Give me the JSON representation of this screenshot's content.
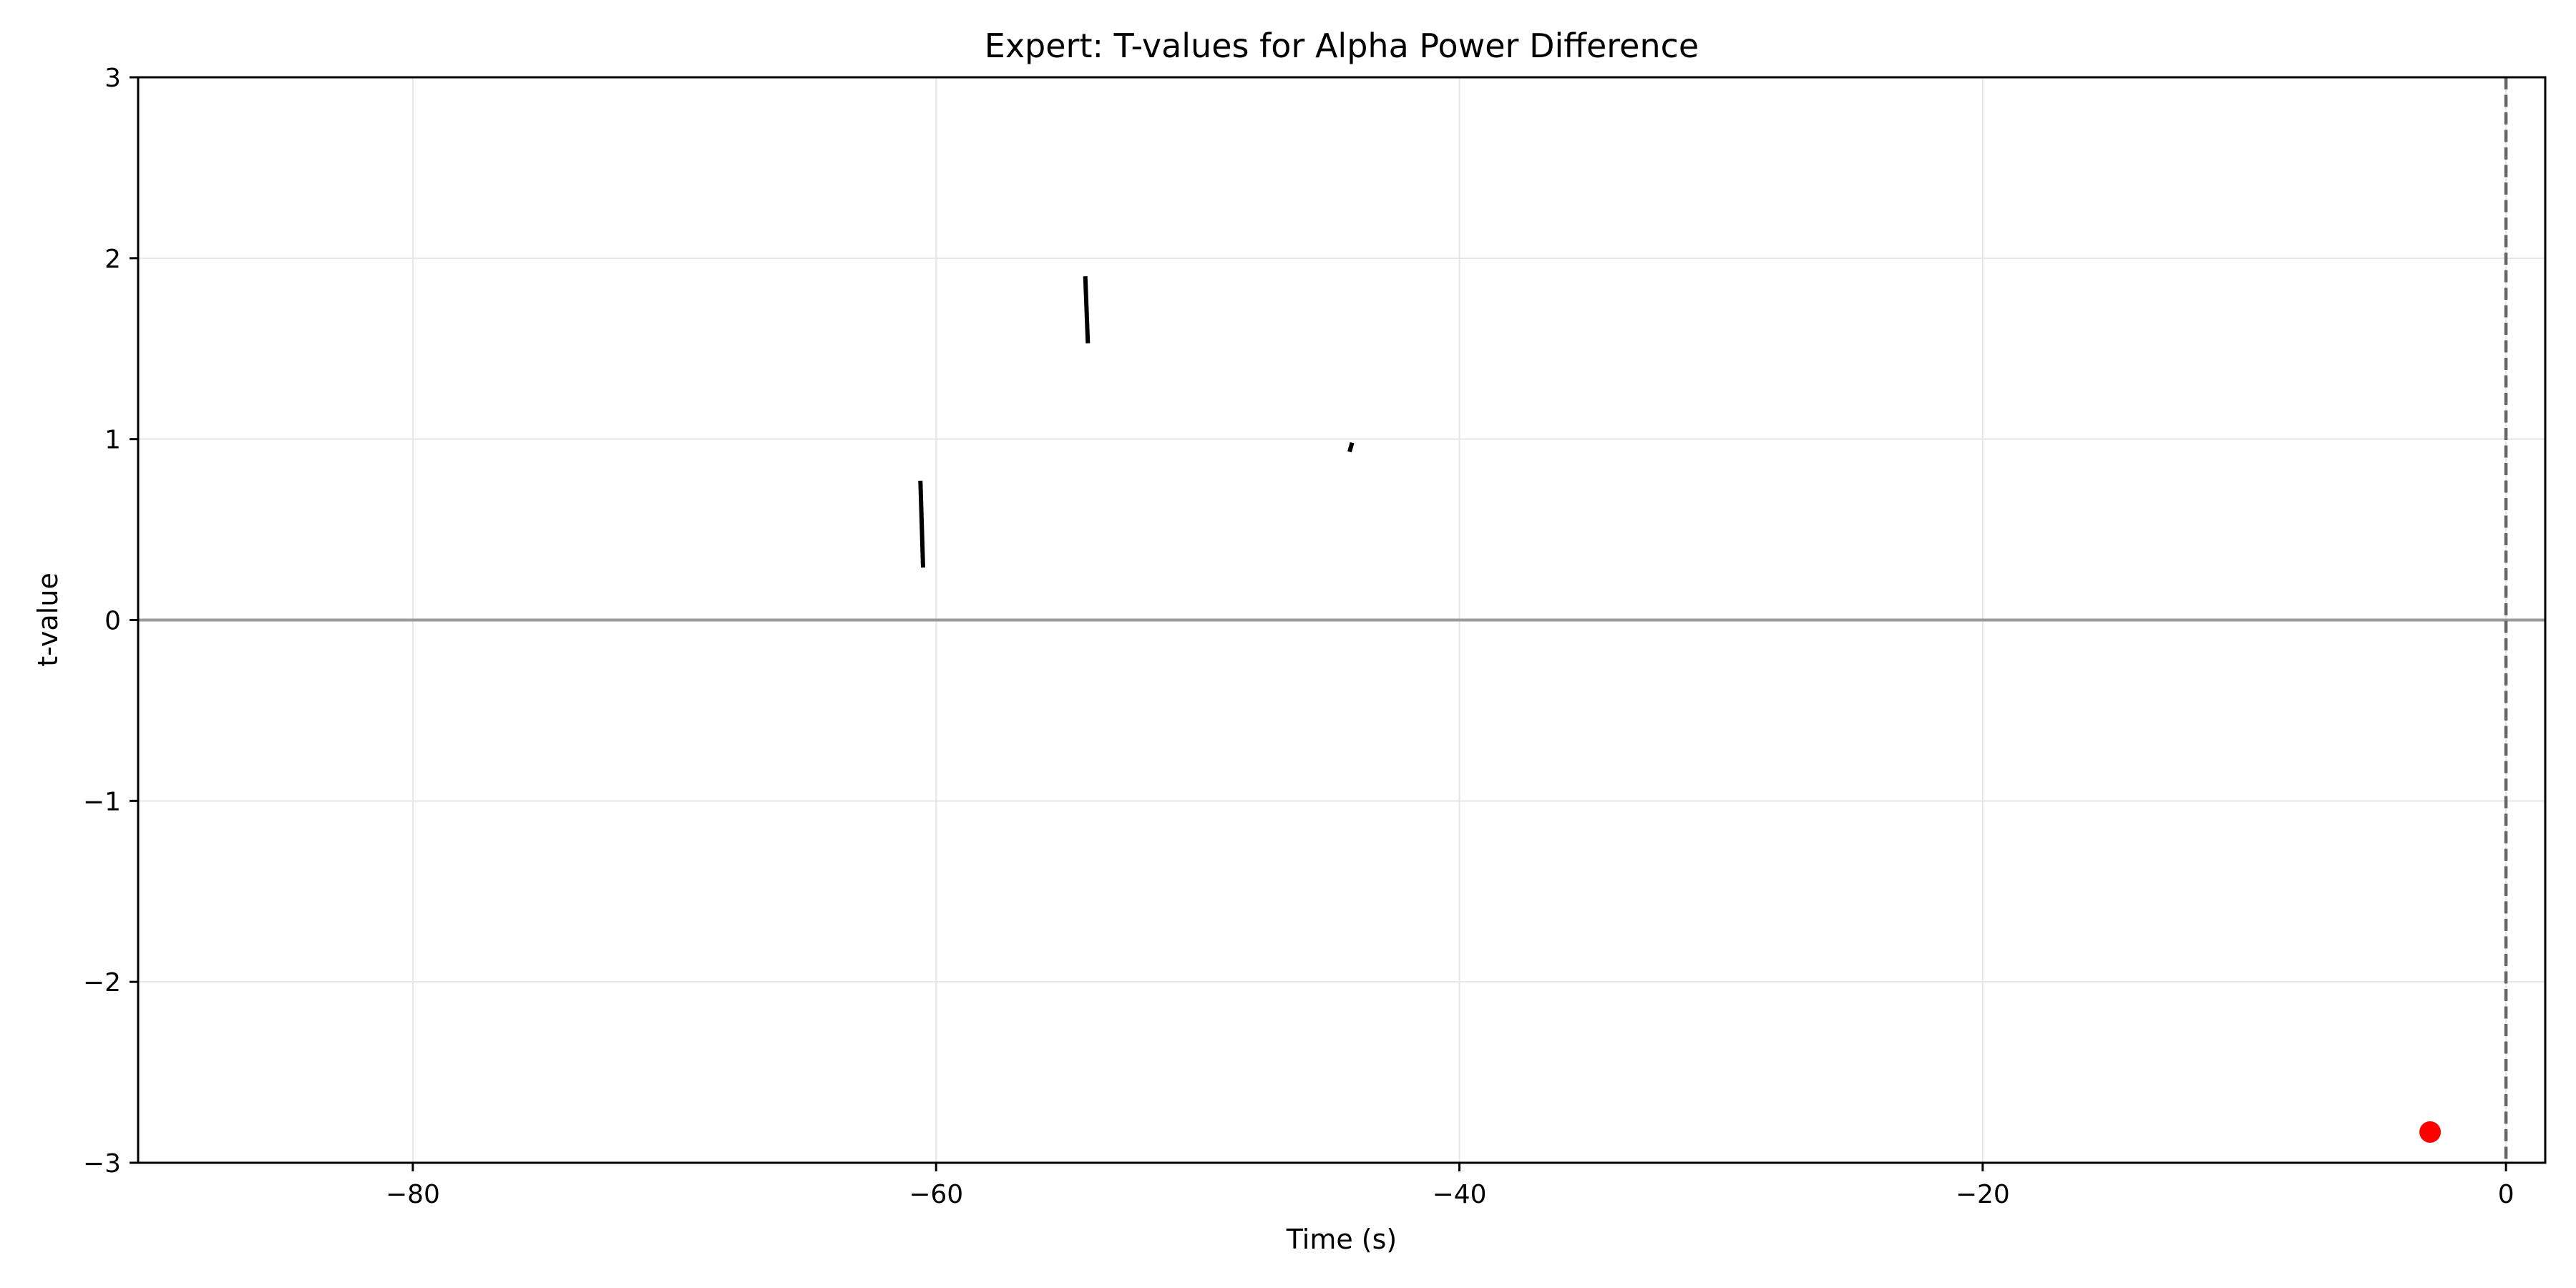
{
  "chart_data": {
    "type": "line",
    "title": "Expert: T-values for Alpha Power Difference",
    "xlabel": "Time (s)",
    "ylabel": "t-value",
    "xlim": [
      -90.5,
      1.5
    ],
    "ylim": [
      -3,
      3
    ],
    "xticks": [
      -80,
      -60,
      -40,
      -20,
      0
    ],
    "xtick_labels": [
      "−80",
      "−60",
      "−40",
      "−20",
      "0"
    ],
    "yticks": [
      -3,
      -2,
      -1,
      0,
      1,
      2,
      3
    ],
    "ytick_labels": [
      "−3",
      "−2",
      "−1",
      "0",
      "1",
      "2",
      "3"
    ],
    "grid": true,
    "colors": {
      "line": "#000000",
      "marker": "#ff0000",
      "zero_line": "#999999",
      "event_line": "#666666",
      "grid": "#e6e6e6"
    },
    "series": [
      {
        "x": [
          -60.6,
          -60.5
        ],
        "y": [
          0.77,
          0.29
        ]
      },
      {
        "x": [
          -54.3,
          -54.2
        ],
        "y": [
          1.9,
          1.53
        ]
      },
      {
        "x": [
          -44.1,
          -44.2
        ],
        "y": [
          0.98,
          0.93
        ]
      }
    ],
    "markers": [
      {
        "x": -2.9,
        "y": -2.83
      }
    ],
    "reference_lines": [
      {
        "orientation": "horizontal",
        "value": 0,
        "style": "solid"
      },
      {
        "orientation": "vertical",
        "value": 0,
        "style": "dashed"
      }
    ]
  }
}
